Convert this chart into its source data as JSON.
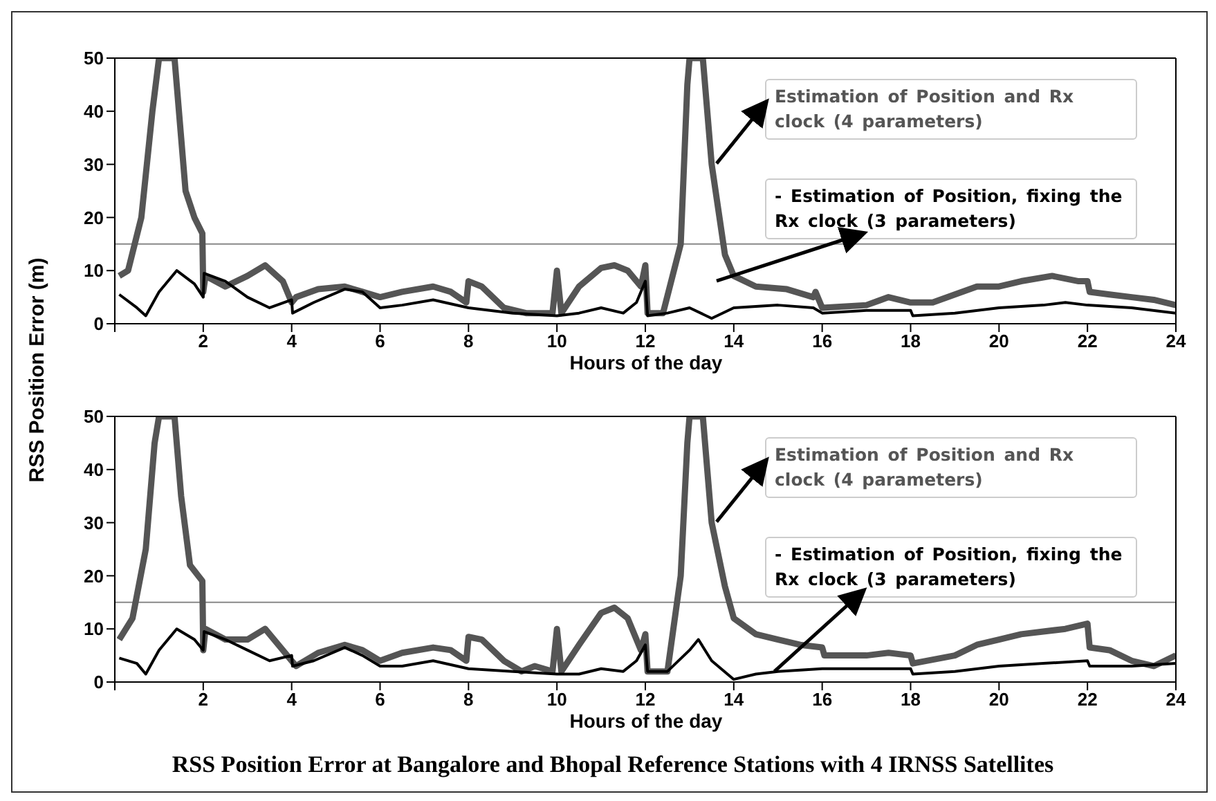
{
  "chart_data": [
    {
      "type": "line",
      "ylabel": "RSS Position Error (m)",
      "xlabel": "Hours of the day",
      "xlim": [
        0,
        24
      ],
      "xticks": [
        {
          "value": 0,
          "label": null
        },
        2,
        4,
        6,
        8,
        10,
        12,
        14,
        16,
        18,
        20,
        22,
        24
      ],
      "ylim": [
        0,
        50
      ],
      "yticks": [
        0,
        10,
        20,
        30,
        40,
        50
      ],
      "legend": "top right",
      "ref_lines": [
        {
          "axis": "y",
          "value": 15,
          "color": "#888888"
        }
      ],
      "series": [
        {
          "name": "Estimation of Position and  Rx clock (4 parameters)",
          "color": "#555555",
          "x": [
            0.1,
            0.3,
            0.6,
            0.85,
            1.0,
            1.35,
            1.5,
            1.6,
            1.8,
            1.98,
            2.0,
            2.05,
            2.5,
            3.0,
            3.4,
            3.8,
            4.0,
            4.1,
            4.6,
            5.2,
            5.6,
            6.0,
            6.5,
            7.2,
            7.6,
            7.95,
            8.0,
            8.3,
            8.8,
            9.3,
            9.9,
            10.0,
            10.1,
            10.5,
            11.0,
            11.3,
            11.6,
            11.9,
            12.0,
            12.05,
            12.4,
            12.8,
            12.95,
            13.0,
            13.3,
            13.5,
            13.8,
            14.0,
            14.5,
            15.2,
            15.8,
            15.85,
            16.0,
            17.0,
            17.5,
            18.0,
            18.5,
            19.0,
            19.5,
            20.0,
            20.5,
            21.2,
            21.8,
            22.0,
            22.05,
            22.5,
            23.0,
            23.5,
            24
          ],
          "values": [
            9,
            10,
            20,
            40,
            50,
            50,
            35,
            25,
            20,
            17,
            6,
            9,
            7,
            9,
            11,
            8,
            4,
            5,
            6.5,
            7,
            6,
            5,
            6,
            7,
            6,
            4,
            8,
            7,
            3,
            2,
            2,
            10,
            2,
            7,
            10.5,
            11,
            10,
            7,
            11,
            2,
            2,
            15,
            45,
            50,
            50,
            30,
            13,
            9,
            7,
            6.5,
            5,
            6,
            3,
            3.5,
            5,
            4,
            4,
            5.5,
            7,
            7,
            8,
            9,
            8,
            8,
            6,
            5.5,
            5,
            4.5,
            3.5
          ]
        },
        {
          "name": "- Estimation of Position, fixing the  Rx clock (3 parameters)",
          "color": "#000000",
          "x": [
            0.1,
            0.5,
            0.7,
            1.0,
            1.4,
            1.8,
            2.0,
            2.02,
            2.5,
            3.0,
            3.5,
            4.0,
            4.02,
            4.5,
            5.2,
            5.6,
            6.0,
            6.5,
            7.2,
            8.0,
            9,
            10,
            10.5,
            11,
            11.5,
            11.8,
            12,
            12.05,
            12.5,
            13,
            13.5,
            14,
            15,
            15.8,
            16,
            17,
            18,
            18.05,
            19,
            20,
            21,
            21.5,
            22,
            23,
            24
          ],
          "values": [
            5.5,
            3,
            1.5,
            6,
            10,
            7.5,
            5,
            9.5,
            8,
            5,
            3,
            4.5,
            2,
            4,
            6.5,
            6,
            3,
            3.5,
            4.5,
            3,
            2,
            1.5,
            2,
            3,
            2,
            4,
            8,
            1.5,
            2,
            3,
            1,
            3,
            3.5,
            3,
            2,
            2.5,
            2.5,
            1.5,
            2,
            3,
            3.5,
            4,
            3.5,
            3,
            2
          ]
        }
      ]
    },
    {
      "type": "line",
      "xlabel": "Hours of the day",
      "xlim": [
        0,
        24
      ],
      "xticks": [
        {
          "value": 0,
          "label": null
        },
        2,
        4,
        6,
        8,
        10,
        12,
        14,
        16,
        18,
        20,
        22,
        24
      ],
      "ylim": [
        0,
        50
      ],
      "yticks": [
        0,
        10,
        20,
        30,
        40,
        50
      ],
      "legend": "top right",
      "ref_lines": [
        {
          "axis": "y",
          "value": 15,
          "color": "#888888"
        }
      ],
      "annotations": [
        "RSS Position Error at Bangalore and Bhopal Reference Stations with 4 IRNSS Satellites"
      ],
      "series": [
        {
          "name": "Estimation of Position and  Rx clock (4 parameters)",
          "color": "#555555",
          "x": [
            0.1,
            0.4,
            0.7,
            0.9,
            1.0,
            1.35,
            1.5,
            1.7,
            1.98,
            2.0,
            2.05,
            2.5,
            3.0,
            3.4,
            3.8,
            4.0,
            4.1,
            4.6,
            5.2,
            5.6,
            6.0,
            6.5,
            7.2,
            7.6,
            7.95,
            8.0,
            8.3,
            8.8,
            9.2,
            9.5,
            9.9,
            10.0,
            10.1,
            10.5,
            11.0,
            11.3,
            11.6,
            11.9,
            12.0,
            12.05,
            12.5,
            12.8,
            12.95,
            13.0,
            13.3,
            13.5,
            13.8,
            14.0,
            14.5,
            15,
            15.5,
            16,
            16.05,
            17,
            17.5,
            18,
            18.05,
            19,
            19.5,
            20,
            20.5,
            21,
            21.5,
            22,
            22.05,
            22.5,
            23,
            23.5,
            24
          ],
          "values": [
            8,
            12,
            25,
            45,
            50,
            50,
            35,
            22,
            19,
            6,
            10,
            8,
            8,
            10,
            6,
            4,
            3,
            5.5,
            7,
            6,
            4,
            5.5,
            6.5,
            6,
            4,
            8.5,
            8,
            4,
            2,
            3,
            2,
            10,
            2,
            7,
            13,
            14,
            12,
            6,
            9,
            2,
            2,
            20,
            45,
            50,
            50,
            30,
            18,
            12,
            9,
            8,
            7,
            6.5,
            5,
            5,
            5.5,
            5,
            3.5,
            5,
            7,
            8,
            9,
            9.5,
            10,
            11,
            6.5,
            6,
            4,
            3,
            5
          ]
        },
        {
          "name": "- Estimation of Position, fixing the  Rx clock (3 parameters)",
          "color": "#000000",
          "x": [
            0.1,
            0.5,
            0.7,
            1.0,
            1.4,
            1.8,
            2.0,
            2.02,
            2.5,
            3.0,
            3.5,
            4.0,
            4.02,
            4.5,
            5.2,
            5.6,
            6.0,
            6.5,
            7.2,
            8.0,
            9,
            10,
            10.5,
            11,
            11.5,
            11.8,
            12,
            12.05,
            12.5,
            13,
            13.2,
            13.5,
            14,
            14.5,
            15,
            16,
            17,
            18,
            18.05,
            19,
            20,
            21,
            22,
            22.05,
            23,
            24
          ],
          "values": [
            4.5,
            3.5,
            1.5,
            6,
            10,
            8,
            6,
            9.5,
            8,
            6,
            4,
            5,
            3,
            4,
            6.5,
            5,
            3,
            3,
            4,
            2.5,
            2,
            1.5,
            1.5,
            2.5,
            2,
            4,
            7,
            2,
            2,
            6,
            8,
            4,
            0.5,
            1.5,
            2,
            2.5,
            2.5,
            2.5,
            1.5,
            2,
            3,
            3.5,
            4,
            3,
            3,
            3.5
          ]
        }
      ]
    }
  ]
}
